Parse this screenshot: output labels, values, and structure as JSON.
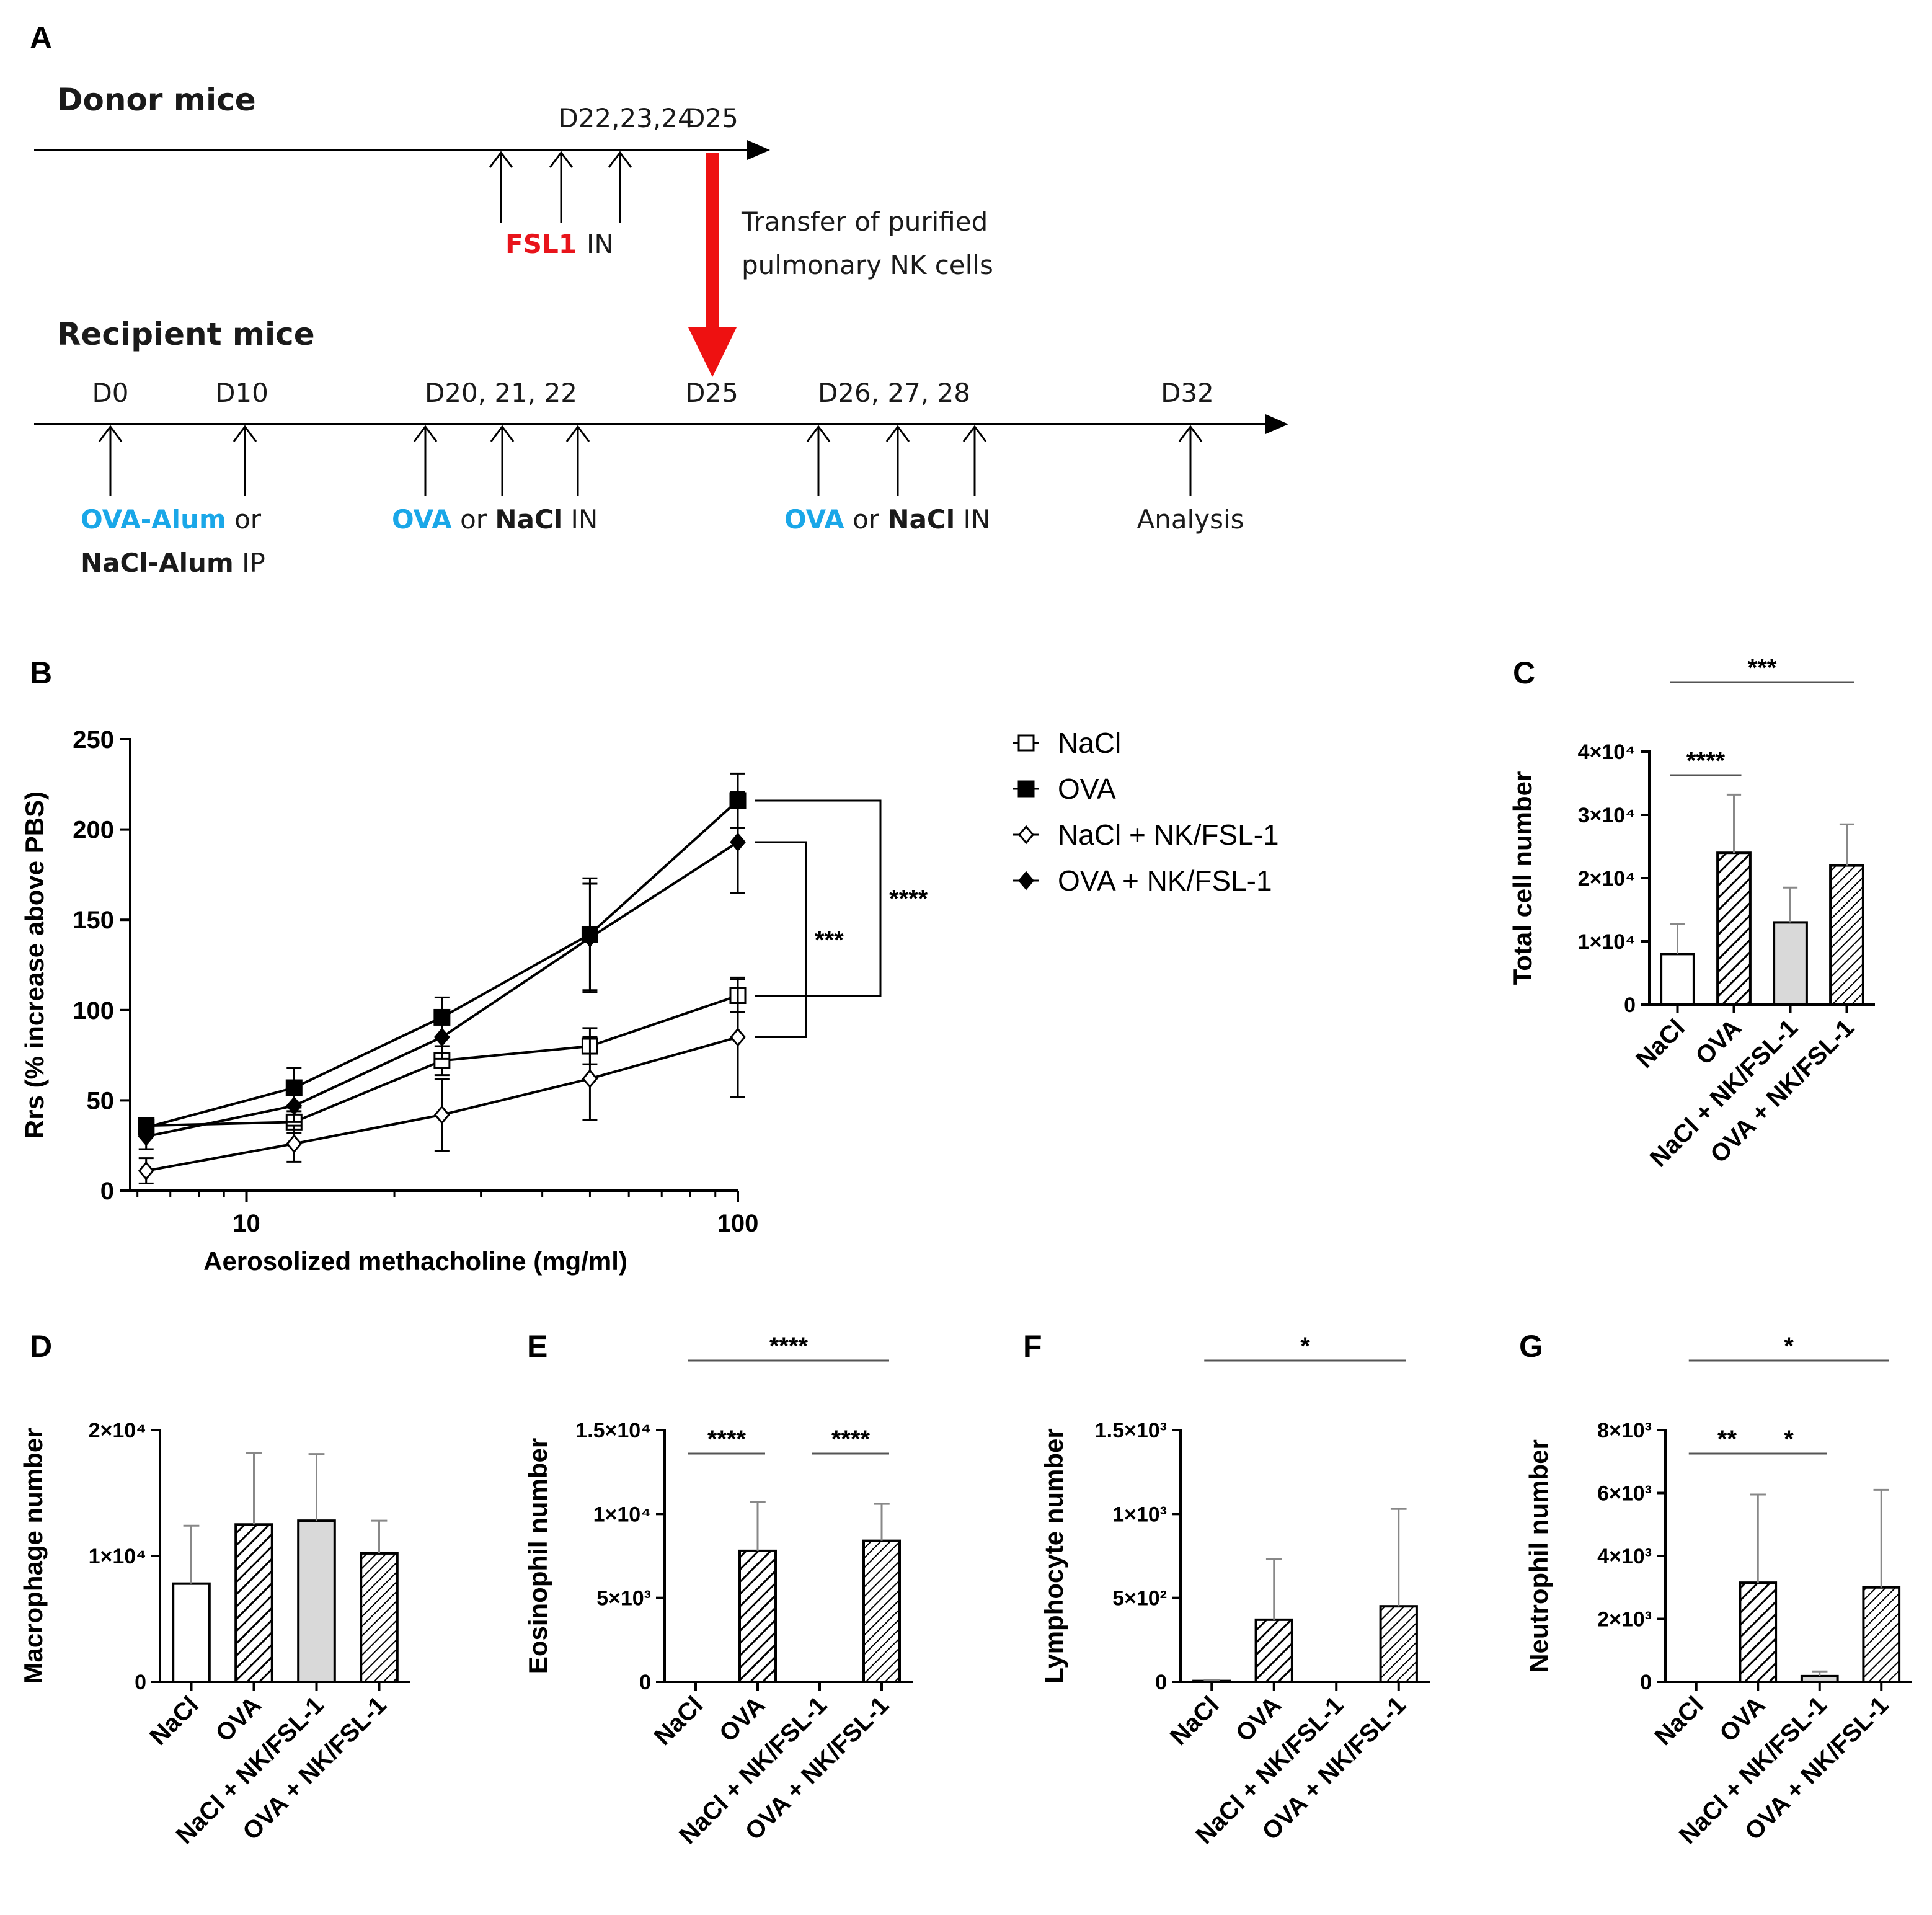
{
  "panelA": {
    "letter": "A",
    "donor": {
      "title": "Donor mice",
      "ticks": [
        {
          "label": "D22,23,24"
        },
        {
          "label": "D25"
        }
      ],
      "agent": "FSL1",
      "route": "IN",
      "transfer_line1": "Transfer of purified",
      "transfer_line2": "pulmonary NK cells"
    },
    "recipient": {
      "title": "Recipient mice",
      "ticks": [
        {
          "label": "D0"
        },
        {
          "label": "D10"
        },
        {
          "label": "D20, 21, 22"
        },
        {
          "label": "D25"
        },
        {
          "label": "D26, 27, 28"
        },
        {
          "label": "D32"
        }
      ],
      "label1_a": "OVA-Alum",
      "label1_b": " or",
      "label1_c": "NaCl-Alum",
      "label1_d": " IP",
      "label2_a": "OVA",
      "label2_b": " or ",
      "label2_c": "NaCl",
      "label2_d": " IN",
      "label3_a": "OVA",
      "label3_b": " or ",
      "label3_c": "NaCl",
      "label3_d": " IN",
      "label4": "Analysis"
    },
    "colors": {
      "ova": "#1aa7e8",
      "fsl": "#e8141b",
      "arrow": "#ee1111",
      "text": "#1a1a1a"
    }
  },
  "chart_data": [
    {
      "id": "B",
      "letter": "B",
      "type": "line",
      "xscale": "log",
      "x": [
        6.25,
        12.5,
        25,
        50,
        100
      ],
      "xticks": [
        "10",
        "100"
      ],
      "xlabel": "Aerosolized methacholine (mg/ml)",
      "ylabel": "Rrs (% increase above PBS)",
      "ylim": [
        0,
        250
      ],
      "yticks": [
        "0",
        "50",
        "100",
        "150",
        "200",
        "250"
      ],
      "series": [
        {
          "name": "NaCl",
          "marker": "square-open",
          "values": [
            36,
            38,
            72,
            80,
            108
          ],
          "errors": [
            4,
            6,
            8,
            10,
            9
          ]
        },
        {
          "name": "OVA",
          "marker": "square-filled",
          "values": [
            35,
            57,
            96,
            142,
            216
          ],
          "errors": [
            5,
            11,
            11,
            31,
            15
          ]
        },
        {
          "name": "NaCl + NK/FSL-1",
          "marker": "diamond-open",
          "values": [
            11,
            26,
            42,
            62,
            85
          ],
          "errors": [
            7,
            10,
            20,
            23,
            33
          ]
        },
        {
          "name": "OVA + NK/FSL-1",
          "marker": "diamond-filled",
          "values": [
            30,
            47,
            85,
            140,
            193
          ],
          "errors": [
            7,
            9,
            12,
            30,
            28
          ]
        }
      ],
      "significance": [
        {
          "label": "***",
          "between": [
            "OVA + NK/FSL-1",
            "NaCl + NK/FSL-1"
          ]
        },
        {
          "label": "****",
          "between": [
            "OVA",
            "NaCl"
          ]
        }
      ]
    },
    {
      "id": "C",
      "letter": "C",
      "type": "bar",
      "categories": [
        "NaCl",
        "OVA",
        "NaCl + NK/FSL-1",
        "OVA + NK/FSL-1"
      ],
      "values": [
        8000,
        24000,
        13000,
        22000
      ],
      "errors": [
        4800,
        9200,
        5500,
        6500
      ],
      "ylabel": "Total cell number",
      "ylim": [
        0,
        40000
      ],
      "yticks": [
        "0",
        "1×10⁴",
        "2×10⁴",
        "3×10⁴",
        "4×10⁴"
      ],
      "significance": [
        {
          "label": "****",
          "from": 0,
          "to": 1
        },
        {
          "label": "***",
          "from": 0,
          "to": 3
        }
      ]
    },
    {
      "id": "D",
      "letter": "D",
      "type": "bar",
      "categories": [
        "NaCl",
        "OVA",
        "NaCl + NK/FSL-1",
        "OVA + NK/FSL-1"
      ],
      "values": [
        7800,
        12500,
        12800,
        10200
      ],
      "errors": [
        4600,
        5700,
        5300,
        2600
      ],
      "ylabel": "Macrophage number",
      "ylim": [
        0,
        20000
      ],
      "yticks": [
        "0",
        "1×10⁴",
        "2×10⁴"
      ],
      "significance": []
    },
    {
      "id": "E",
      "letter": "E",
      "type": "bar",
      "categories": [
        "NaCl",
        "OVA",
        "NaCl + NK/FSL-1",
        "OVA + NK/FSL-1"
      ],
      "values": [
        0,
        7800,
        0,
        8400
      ],
      "errors": [
        0,
        2900,
        0,
        2200
      ],
      "ylabel": "Eosinophil number",
      "ylim": [
        0,
        15000
      ],
      "yticks": [
        "0",
        "5×10³",
        "1×10⁴",
        "1.5×10⁴"
      ],
      "significance": [
        {
          "label": "****",
          "from": 0,
          "to": 1
        },
        {
          "label": "****",
          "from": 2,
          "to": 3
        },
        {
          "label": "****",
          "from": 0,
          "to": 3
        }
      ]
    },
    {
      "id": "F",
      "letter": "F",
      "type": "bar",
      "categories": [
        "NaCl",
        "OVA",
        "NaCl + NK/FSL-1",
        "OVA + NK/FSL-1"
      ],
      "values": [
        5,
        370,
        0,
        450
      ],
      "errors": [
        5,
        360,
        0,
        580
      ],
      "ylabel": "Lymphocyte number",
      "ylim": [
        0,
        1500
      ],
      "yticks": [
        "0",
        "5×10²",
        "1×10³",
        "1.5×10³"
      ],
      "significance": [
        {
          "label": "*",
          "from": 0,
          "to": 3
        }
      ]
    },
    {
      "id": "G",
      "letter": "G",
      "type": "bar",
      "categories": [
        "NaCl",
        "OVA",
        "NaCl + NK/FSL-1",
        "OVA + NK/FSL-1"
      ],
      "values": [
        0,
        3150,
        180,
        3000
      ],
      "errors": [
        0,
        2800,
        150,
        3100
      ],
      "ylabel": "Neutrophil number",
      "ylim": [
        0,
        8000
      ],
      "yticks": [
        "0",
        "2×10³",
        "4×10³",
        "6×10³",
        "8×10³"
      ],
      "significance": [
        {
          "label": "**",
          "from": 0,
          "to": 1
        },
        {
          "label": "*",
          "from": 1,
          "to": 2
        },
        {
          "label": "*",
          "from": 0,
          "to": 3
        }
      ]
    }
  ]
}
